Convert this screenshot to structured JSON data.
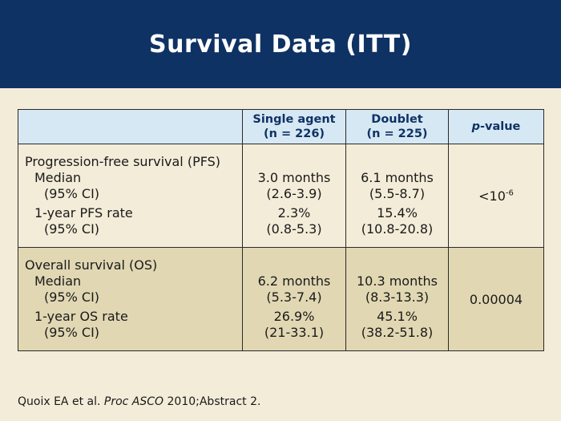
{
  "slide": {
    "title": "Survival Data (ITT)"
  },
  "table": {
    "header": {
      "col2_line1": "Single agent",
      "col2_line2": "(n = 226)",
      "col3_line1": "Doublet",
      "col3_line2": "(n = 225)",
      "col4_italic": "p",
      "col4_rest": "-value"
    },
    "pfs": {
      "label": "Progression-free survival (PFS)",
      "median_label": "Median",
      "median_ci_label": "(95% CI)",
      "rate_label": "1-year PFS rate",
      "rate_ci_label": "(95% CI)",
      "single_median": "3.0 months",
      "single_median_ci": "(2.6-3.9)",
      "single_rate": "2.3%",
      "single_rate_ci": "(0.8-5.3)",
      "doublet_median": "6.1 months",
      "doublet_median_ci": "(5.5-8.7)",
      "doublet_rate": "15.4%",
      "doublet_rate_ci": "(10.8-20.8)",
      "p_base": "<10",
      "p_exp": "-6"
    },
    "os": {
      "label": "Overall survival (OS)",
      "median_label": "Median",
      "median_ci_label": "(95% CI)",
      "rate_label": "1-year OS rate",
      "rate_ci_label": "(95% CI)",
      "single_median": "6.2 months",
      "single_median_ci": "(5.3-7.4)",
      "single_rate": "26.9%",
      "single_rate_ci": "(21-33.1)",
      "doublet_median": "10.3 months",
      "doublet_median_ci": "(8.3-13.3)",
      "doublet_rate": "45.1%",
      "doublet_rate_ci": "(38.2-51.8)",
      "p_value": "0.00004"
    }
  },
  "citation": {
    "prefix": "Quoix EA et al. ",
    "journal": "Proc ASCO",
    "suffix": " 2010;Abstract 2."
  },
  "colors": {
    "header_bg": "#0f3264",
    "slide_bg": "#f3ecd8",
    "table_header_bg": "#d6e8f4",
    "os_row_bg": "#e1d7b3"
  }
}
